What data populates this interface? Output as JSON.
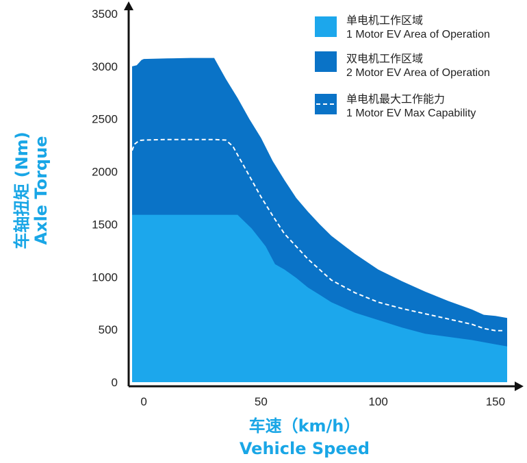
{
  "chart_data": {
    "type": "area",
    "xlabel_cn": "车速（km/h）",
    "xlabel_en": "Vehicle Speed",
    "ylabel_cn": "车轴扭矩 (Nm)",
    "ylabel_en": "Axle Torque",
    "xlim": [
      -5,
      155
    ],
    "ylim": [
      0,
      3500
    ],
    "x_ticks": [
      "0",
      "50",
      "100",
      "150"
    ],
    "y_ticks": [
      "0",
      "500",
      "1000",
      "1500",
      "2000",
      "2500",
      "3000",
      "3500"
    ],
    "grid": false,
    "legend_position": "top-right",
    "series": [
      {
        "name_cn": "单电机工作区域",
        "name_en": "1 Motor EV Area of Operation",
        "style": "area",
        "color": "#1ca7ec",
        "x": [
          -5,
          35,
          40,
          46,
          52,
          56,
          60,
          65,
          70,
          75,
          80,
          85,
          90,
          100,
          110,
          120,
          130,
          140,
          150,
          155
        ],
        "y": [
          1590,
          1590,
          1590,
          1460,
          1290,
          1120,
          1070,
          990,
          900,
          830,
          760,
          710,
          660,
          590,
          520,
          460,
          430,
          400,
          360,
          340
        ]
      },
      {
        "name_cn": "双电机工作区域",
        "name_en": "2 Motor EV Area of Operation",
        "style": "area",
        "color": "#0a73c7",
        "x": [
          -5,
          -3,
          -1,
          0,
          10,
          20,
          30,
          32,
          35,
          40,
          45,
          50,
          55,
          60,
          65,
          70,
          75,
          80,
          90,
          100,
          110,
          120,
          130,
          140,
          145,
          150,
          155
        ],
        "y": [
          3000,
          3010,
          3060,
          3070,
          3075,
          3080,
          3080,
          3000,
          2880,
          2700,
          2500,
          2320,
          2100,
          1920,
          1750,
          1620,
          1500,
          1390,
          1220,
          1070,
          960,
          860,
          770,
          690,
          640,
          630,
          610
        ]
      },
      {
        "name_cn": "单电机最大工作能力",
        "name_en": "1 Motor EV Max Capability",
        "style": "dashed-line",
        "color": "#ffffff",
        "x": [
          -5,
          -4,
          -2,
          0,
          10,
          20,
          30,
          35,
          38,
          40,
          45,
          50,
          55,
          60,
          70,
          80,
          90,
          100,
          110,
          120,
          130,
          140,
          145,
          150,
          153
        ],
        "y": [
          2200,
          2260,
          2295,
          2300,
          2305,
          2305,
          2305,
          2300,
          2240,
          2160,
          1960,
          1760,
          1580,
          1410,
          1170,
          970,
          850,
          760,
          700,
          650,
          600,
          550,
          510,
          490,
          490
        ]
      }
    ]
  },
  "colors": {
    "axis": "#111111",
    "title": "#19a6e6",
    "tick_text": "#222222"
  }
}
